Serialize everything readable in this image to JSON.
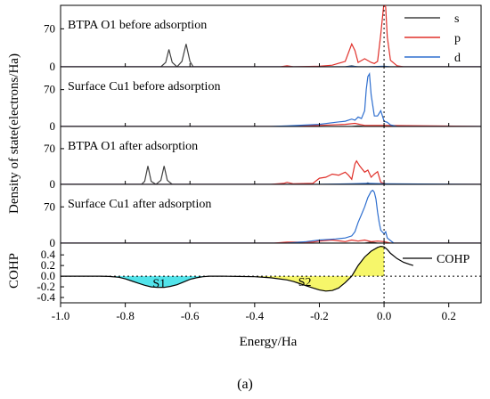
{
  "chart_data": {
    "type": "line",
    "x_axis": {
      "label": "Energy/Ha",
      "range": [
        -1.0,
        0.3
      ],
      "ticks": [
        "-1.0",
        "-0.8",
        "-0.6",
        "-0.4",
        "-0.2",
        "0.0",
        "0.2"
      ]
    },
    "y_axis_label_dos": "Density of state(electrons/Ha)",
    "y_axis_label_cohp": "COHP",
    "caption": "(a)",
    "legend": [
      {
        "name": "s",
        "color": "#404040"
      },
      {
        "name": "p",
        "color": "#e0302a"
      },
      {
        "name": "d",
        "color": "#2f6fcf"
      }
    ],
    "dos_panels": [
      {
        "title": "BTPA O1 before adsorption",
        "ylim": [
          0,
          110
        ],
        "yticks": [
          "0",
          "70"
        ],
        "series": [
          {
            "name": "s",
            "color": "#404040",
            "x": [
              -1.0,
              -0.69,
              -0.675,
              -0.665,
              -0.655,
              -0.64,
              -0.625,
              -0.612,
              -0.6,
              -0.59,
              -0.58,
              -0.3,
              -0.2,
              -0.12,
              -0.1,
              -0.085,
              -0.07,
              0.3
            ],
            "y": [
              0,
              0,
              8,
              32,
              8,
              0,
              10,
              42,
              10,
              0,
              0,
              0,
              0,
              0,
              2,
              0,
              0,
              0
            ]
          },
          {
            "name": "p",
            "color": "#e0302a",
            "x": [
              -1.0,
              -0.6,
              -0.4,
              -0.32,
              -0.3,
              -0.28,
              -0.2,
              -0.16,
              -0.12,
              -0.1,
              -0.09,
              -0.08,
              -0.06,
              -0.04,
              -0.03,
              -0.02,
              -0.01,
              0.0,
              0.005,
              0.01,
              0.02,
              0.04,
              0.06,
              0.3
            ],
            "y": [
              0,
              0,
              0,
              0,
              2,
              0,
              1,
              3,
              10,
              42,
              30,
              8,
              15,
              8,
              6,
              10,
              60,
              120,
              110,
              55,
              12,
              2,
              0,
              0
            ]
          },
          {
            "name": "d",
            "color": "#2f6fcf",
            "x": [
              -1.0,
              -0.12,
              -0.1,
              -0.08,
              -0.05,
              0.0,
              0.02,
              0.3
            ],
            "y": [
              0,
              0,
              1,
              0,
              0,
              1,
              0,
              0
            ]
          }
        ]
      },
      {
        "title": "Surface Cu1 before adsorption",
        "ylim": [
          0,
          110
        ],
        "yticks": [
          "0",
          "70"
        ],
        "series": [
          {
            "name": "s",
            "color": "#404040",
            "x": [
              -1.0,
              -0.1,
              -0.08,
              -0.06,
              0.3
            ],
            "y": [
              0,
              0,
              1,
              0,
              0
            ]
          },
          {
            "name": "p",
            "color": "#e0302a",
            "x": [
              -1.0,
              -0.3,
              -0.2,
              -0.12,
              -0.09,
              -0.06,
              0.0,
              0.3
            ],
            "y": [
              0,
              0,
              2,
              4,
              6,
              2,
              2,
              0
            ]
          },
          {
            "name": "d",
            "color": "#2f6fcf",
            "x": [
              -1.0,
              -0.35,
              -0.3,
              -0.2,
              -0.15,
              -0.12,
              -0.1,
              -0.09,
              -0.08,
              -0.07,
              -0.06,
              -0.055,
              -0.05,
              -0.045,
              -0.04,
              -0.035,
              -0.03,
              -0.02,
              -0.01,
              0.0,
              0.01,
              0.02,
              0.04,
              0.3
            ],
            "y": [
              0,
              0,
              1,
              4,
              8,
              10,
              14,
              12,
              18,
              15,
              30,
              70,
              95,
              100,
              60,
              40,
              20,
              20,
              30,
              10,
              8,
              3,
              0,
              0
            ]
          }
        ]
      },
      {
        "title": "BTPA O1 after adsorption",
        "ylim": [
          0,
          110
        ],
        "yticks": [
          "0",
          "70"
        ],
        "series": [
          {
            "name": "s",
            "color": "#404040",
            "x": [
              -1.0,
              -0.75,
              -0.74,
              -0.73,
              -0.72,
              -0.705,
              -0.69,
              -0.68,
              -0.67,
              -0.655,
              -0.64,
              -0.3,
              -0.06,
              -0.05,
              -0.04,
              0.3
            ],
            "y": [
              0,
              0,
              6,
              36,
              6,
              0,
              8,
              36,
              8,
              0,
              0,
              0,
              0,
              3,
              0,
              0
            ]
          },
          {
            "name": "p",
            "color": "#e0302a",
            "x": [
              -1.0,
              -0.5,
              -0.35,
              -0.31,
              -0.3,
              -0.28,
              -0.22,
              -0.2,
              -0.18,
              -0.16,
              -0.14,
              -0.12,
              -0.11,
              -0.1,
              -0.09,
              -0.085,
              -0.075,
              -0.06,
              -0.05,
              -0.04,
              -0.03,
              -0.02,
              -0.01,
              0.0,
              0.01,
              0.02,
              0.3
            ],
            "y": [
              0,
              0,
              0,
              2,
              4,
              1,
              2,
              12,
              14,
              20,
              18,
              24,
              18,
              10,
              40,
              46,
              36,
              24,
              28,
              14,
              20,
              25,
              4,
              2,
              0,
              0,
              0
            ]
          },
          {
            "name": "d",
            "color": "#2f6fcf",
            "x": [
              -1.0,
              -0.2,
              -0.1,
              -0.05,
              0.0,
              0.3
            ],
            "y": [
              0,
              0,
              1,
              2,
              1,
              0
            ]
          }
        ]
      },
      {
        "title": "Surface Cu1 after adsorption",
        "ylim": [
          0,
          110
        ],
        "yticks": [
          "0",
          "70"
        ],
        "series": [
          {
            "name": "s",
            "color": "#404040",
            "x": [
              -1.0,
              -0.06,
              -0.04,
              -0.02,
              0.3
            ],
            "y": [
              0,
              0,
              2,
              0,
              0
            ]
          },
          {
            "name": "p",
            "color": "#e0302a",
            "x": [
              -1.0,
              -0.34,
              -0.3,
              -0.22,
              -0.2,
              -0.16,
              -0.12,
              -0.1,
              -0.08,
              -0.06,
              -0.04,
              -0.02,
              0.0,
              0.02,
              0.3
            ],
            "y": [
              0,
              0,
              2,
              2,
              4,
              6,
              3,
              6,
              4,
              6,
              3,
              4,
              3,
              0,
              0
            ]
          },
          {
            "name": "d",
            "color": "#2f6fcf",
            "x": [
              -1.0,
              -0.3,
              -0.24,
              -0.2,
              -0.15,
              -0.12,
              -0.1,
              -0.09,
              -0.08,
              -0.07,
              -0.06,
              -0.05,
              -0.04,
              -0.035,
              -0.03,
              -0.025,
              -0.02,
              -0.015,
              -0.01,
              0.0,
              0.005,
              0.01,
              0.02,
              0.03,
              0.3
            ],
            "y": [
              0,
              0,
              3,
              6,
              8,
              10,
              14,
              22,
              40,
              55,
              70,
              88,
              100,
              102,
              98,
              85,
              60,
              40,
              25,
              18,
              22,
              10,
              5,
              0,
              0
            ]
          }
        ]
      }
    ],
    "cohp_panel": {
      "ylim": [
        -0.5,
        0.62
      ],
      "yticks": [
        "-0.4",
        "-0.2",
        "0.0",
        "0.2",
        "0.4"
      ],
      "ytick_values": [
        -0.4,
        -0.2,
        0.0,
        0.2,
        0.4
      ],
      "series": {
        "name": "COHP",
        "color": "#000000",
        "x": [
          -1.0,
          -0.88,
          -0.85,
          -0.82,
          -0.8,
          -0.78,
          -0.76,
          -0.74,
          -0.72,
          -0.7,
          -0.68,
          -0.66,
          -0.64,
          -0.62,
          -0.6,
          -0.58,
          -0.56,
          -0.54,
          -0.5,
          -0.45,
          -0.4,
          -0.35,
          -0.3,
          -0.28,
          -0.26,
          -0.24,
          -0.22,
          -0.2,
          -0.18,
          -0.16,
          -0.14,
          -0.12,
          -0.1,
          -0.08,
          -0.06,
          -0.04,
          -0.02,
          -0.01,
          0.0,
          0.01,
          0.02,
          0.04,
          0.06,
          0.08,
          0.09
        ],
        "y": [
          0.0,
          0.0,
          -0.005,
          -0.02,
          -0.05,
          -0.09,
          -0.13,
          -0.17,
          -0.2,
          -0.21,
          -0.21,
          -0.19,
          -0.16,
          -0.11,
          -0.06,
          -0.03,
          -0.01,
          0.0,
          0.0,
          -0.005,
          -0.01,
          -0.03,
          -0.07,
          -0.1,
          -0.14,
          -0.18,
          -0.22,
          -0.26,
          -0.28,
          -0.27,
          -0.22,
          -0.12,
          0.0,
          0.2,
          0.36,
          0.47,
          0.54,
          0.56,
          0.55,
          0.5,
          0.43,
          0.33,
          0.26,
          0.22,
          0.2
        ]
      },
      "regions": [
        {
          "label": "S1",
          "x_start": -0.83,
          "x_end": -0.56,
          "color": "#3fe0e8"
        },
        {
          "label": "S2",
          "x_start": -0.39,
          "x_end": -0.1,
          "color": "#f5f55a"
        },
        {
          "label": "",
          "x_start": -0.1,
          "x_end": 0.0,
          "color": "#f5f55a"
        }
      ],
      "legend": "COHP"
    }
  }
}
